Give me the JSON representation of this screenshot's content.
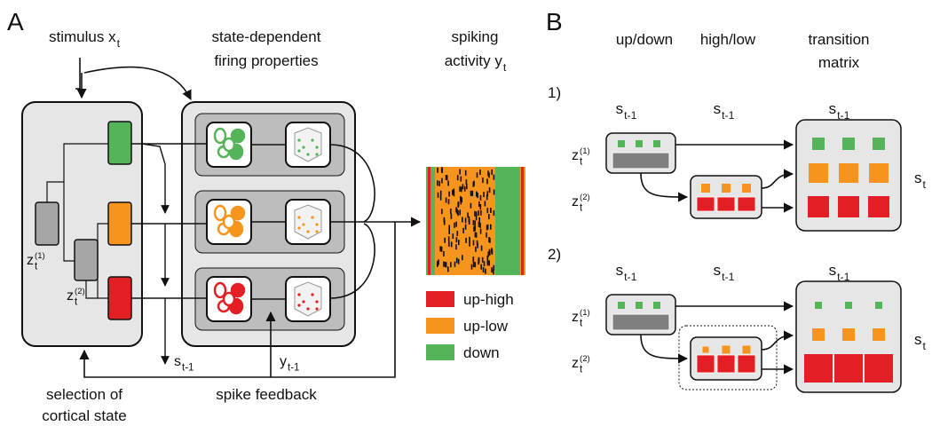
{
  "panel_a": {
    "label": "A",
    "stimulus": {
      "base": "stimulus x",
      "sub": "t"
    },
    "firing": [
      "state-dependent",
      "firing properties"
    ],
    "spiking": {
      "line1": "spiking",
      "line2": {
        "base": "activity y",
        "sub": "t"
      }
    },
    "z1": {
      "base": "z",
      "sub": "t",
      "sup": "(1)"
    },
    "z2": {
      "base": "z",
      "sub": "t",
      "sup": "(2)"
    },
    "s_prev": {
      "base": "s",
      "sub": "t-1"
    },
    "y_prev": {
      "base": "y",
      "sub": "t-1"
    },
    "selection": [
      "selection of",
      "cortical state"
    ],
    "feedback": "spike feedback",
    "legend": [
      {
        "label": "up-high",
        "color": "#e31e24"
      },
      {
        "label": "up-low",
        "color": "#f7941d"
      },
      {
        "label": "down",
        "color": "#55b45a"
      }
    ]
  },
  "panel_b": {
    "label": "B",
    "col_headers": [
      "up/down",
      "high/low"
    ],
    "matrix_header": [
      "transition",
      "matrix"
    ],
    "rows": [
      {
        "label": "1)",
        "s_headers": [
          {
            "base": "s",
            "sub": "t-1"
          },
          {
            "base": "s",
            "sub": "t-1"
          },
          {
            "base": "s",
            "sub": "t-1"
          }
        ],
        "z1": {
          "base": "z",
          "sub": "t",
          "sup": "(1)"
        },
        "z2": {
          "base": "z",
          "sub": "t",
          "sup": "(2)"
        },
        "s_t": {
          "base": "s",
          "sub": "t"
        }
      },
      {
        "label": "2)",
        "s_headers": [
          {
            "base": "s",
            "sub": "t-1"
          },
          {
            "base": "s",
            "sub": "t-1"
          },
          {
            "base": "s",
            "sub": "t-1"
          }
        ],
        "z1": {
          "base": "z",
          "sub": "t",
          "sup": "(1)"
        },
        "z2": {
          "base": "z",
          "sub": "t",
          "sup": "(2)"
        },
        "s_t": {
          "base": "s",
          "sub": "t"
        }
      }
    ]
  }
}
